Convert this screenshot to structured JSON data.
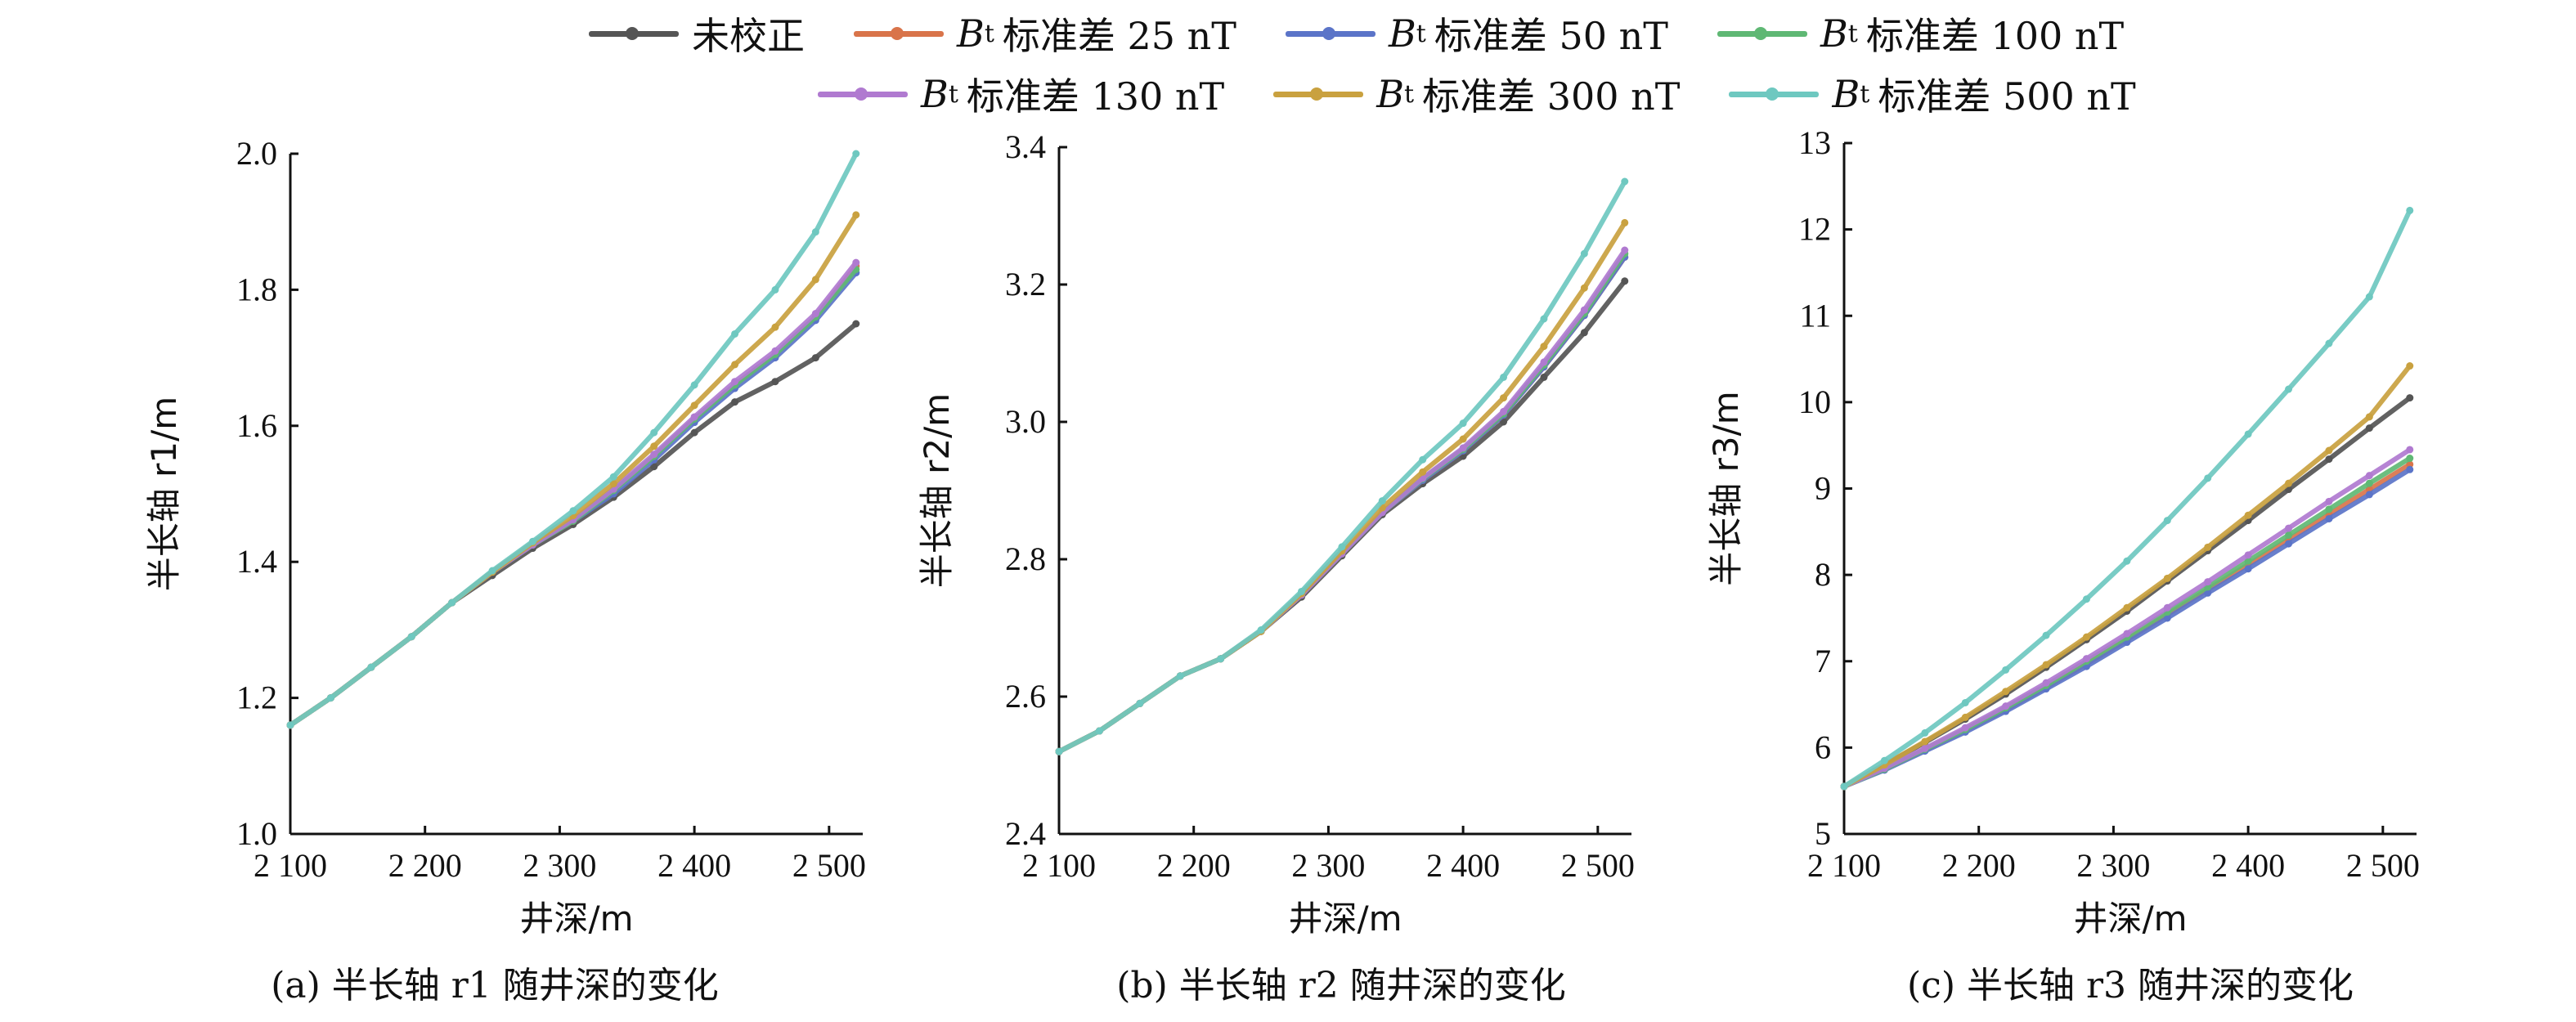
{
  "legend": [
    {
      "label": "未校正",
      "color": "#555555"
    },
    {
      "label": "标准差 25 nT",
      "color": "#d9744a"
    },
    {
      "label": "标准差 50 nT",
      "color": "#5b74c8"
    },
    {
      "label": "标准差 100 nT",
      "color": "#5fb874"
    },
    {
      "label": "标准差 130 nT",
      "color": "#b07ad0"
    },
    {
      "label": "标准差 300 nT",
      "color": "#c9a13f"
    },
    {
      "label": "标准差 500 nT",
      "color": "#6ec8c0"
    }
  ],
  "legend_var": "B",
  "legend_sub": "t",
  "chart_data": [
    {
      "type": "line",
      "xlabel": "井深/m",
      "ylabel": "半长轴 r1/m",
      "caption": "(a) 半长轴 r1 随井深的变化",
      "xlim": [
        2100,
        2525
      ],
      "ylim": [
        1.0,
        2.0
      ],
      "xticks": [
        2100,
        2200,
        2300,
        2400,
        2500
      ],
      "xtick_labels": [
        "2 100",
        "2 200",
        "2 300",
        "2 400",
        "2 500"
      ],
      "yticks": [
        1.0,
        1.2,
        1.4,
        1.6,
        1.8,
        2.0
      ],
      "ytick_labels": [
        "1.0",
        "1.2",
        "1.4",
        "1.6",
        "1.8",
        "2.0"
      ],
      "x": [
        2100,
        2130,
        2160,
        2190,
        2220,
        2250,
        2280,
        2310,
        2340,
        2370,
        2400,
        2430,
        2460,
        2490,
        2520
      ],
      "series": [
        {
          "name": "未校正",
          "values": [
            1.16,
            1.2,
            1.245,
            1.29,
            1.34,
            1.38,
            1.42,
            1.455,
            1.495,
            1.54,
            1.59,
            1.635,
            1.665,
            1.7,
            1.75
          ]
        },
        {
          "name": "标准差 25 nT",
          "values": [
            1.16,
            1.2,
            1.245,
            1.29,
            1.34,
            1.385,
            1.425,
            1.46,
            1.505,
            1.555,
            1.61,
            1.66,
            1.705,
            1.76,
            1.835
          ]
        },
        {
          "name": "标准差 50 nT",
          "values": [
            1.16,
            1.2,
            1.245,
            1.29,
            1.34,
            1.385,
            1.425,
            1.46,
            1.5,
            1.55,
            1.605,
            1.655,
            1.7,
            1.755,
            1.825
          ]
        },
        {
          "name": "标准差 100 nT",
          "values": [
            1.16,
            1.2,
            1.245,
            1.29,
            1.34,
            1.385,
            1.425,
            1.46,
            1.505,
            1.555,
            1.61,
            1.66,
            1.705,
            1.76,
            1.83
          ]
        },
        {
          "name": "标准差 130 nT",
          "values": [
            1.16,
            1.2,
            1.245,
            1.29,
            1.34,
            1.385,
            1.425,
            1.462,
            1.507,
            1.558,
            1.613,
            1.665,
            1.71,
            1.765,
            1.84
          ]
        },
        {
          "name": "标准差 300 nT",
          "values": [
            1.16,
            1.2,
            1.245,
            1.29,
            1.34,
            1.385,
            1.428,
            1.468,
            1.515,
            1.57,
            1.63,
            1.69,
            1.745,
            1.815,
            1.91
          ]
        },
        {
          "name": "标准差 500 nT",
          "values": [
            1.16,
            1.2,
            1.245,
            1.29,
            1.34,
            1.387,
            1.43,
            1.475,
            1.525,
            1.59,
            1.66,
            1.735,
            1.8,
            1.885,
            2.0
          ]
        }
      ]
    },
    {
      "type": "line",
      "xlabel": "井深/m",
      "ylabel": "半长轴 r2/m",
      "caption": "(b) 半长轴 r2 随井深的变化",
      "xlim": [
        2100,
        2525
      ],
      "ylim": [
        2.4,
        3.4
      ],
      "xticks": [
        2100,
        2200,
        2300,
        2400,
        2500
      ],
      "xtick_labels": [
        "2 100",
        "2 200",
        "2 300",
        "2 400",
        "2 500"
      ],
      "yticks": [
        2.4,
        2.6,
        2.8,
        3.0,
        3.2,
        3.4
      ],
      "ytick_labels": [
        "2.4",
        "2.6",
        "2.8",
        "3.0",
        "3.2",
        "3.4"
      ],
      "x": [
        2100,
        2130,
        2160,
        2190,
        2220,
        2250,
        2280,
        2310,
        2340,
        2370,
        2400,
        2430,
        2460,
        2490,
        2520
      ],
      "series": [
        {
          "name": "未校正",
          "values": [
            2.52,
            2.55,
            2.59,
            2.63,
            2.655,
            2.695,
            2.745,
            2.805,
            2.865,
            2.91,
            2.95,
            3.0,
            3.065,
            3.13,
            3.205
          ]
        },
        {
          "name": "标准差 25 nT",
          "values": [
            2.52,
            2.55,
            2.59,
            2.63,
            2.655,
            2.695,
            2.748,
            2.808,
            2.868,
            2.915,
            2.958,
            3.01,
            3.08,
            3.155,
            3.24
          ]
        },
        {
          "name": "标准差 50 nT",
          "values": [
            2.52,
            2.55,
            2.59,
            2.63,
            2.655,
            2.695,
            2.748,
            2.808,
            2.868,
            2.915,
            2.958,
            3.01,
            3.08,
            3.155,
            3.24
          ]
        },
        {
          "name": "标准差 100 nT",
          "values": [
            2.52,
            2.55,
            2.59,
            2.63,
            2.655,
            2.695,
            2.748,
            2.808,
            2.868,
            2.917,
            2.96,
            3.012,
            3.083,
            3.158,
            3.245
          ]
        },
        {
          "name": "标准差 130 nT",
          "values": [
            2.52,
            2.55,
            2.59,
            2.63,
            2.655,
            2.695,
            2.748,
            2.808,
            2.868,
            2.918,
            2.962,
            3.015,
            3.087,
            3.163,
            3.25
          ]
        },
        {
          "name": "标准差 300 nT",
          "values": [
            2.52,
            2.55,
            2.59,
            2.63,
            2.655,
            2.695,
            2.75,
            2.812,
            2.875,
            2.927,
            2.975,
            3.035,
            3.11,
            3.195,
            3.29
          ]
        },
        {
          "name": "标准差 500 nT",
          "values": [
            2.52,
            2.55,
            2.59,
            2.63,
            2.655,
            2.697,
            2.753,
            2.818,
            2.885,
            2.945,
            2.998,
            3.065,
            3.15,
            3.245,
            3.35
          ]
        }
      ]
    },
    {
      "type": "line",
      "xlabel": "井深/m",
      "ylabel": "半长轴 r3/m",
      "caption": "(c) 半长轴 r3 随井深的变化",
      "xlim": [
        2100,
        2525
      ],
      "ylim": [
        5,
        13
      ],
      "xticks": [
        2100,
        2200,
        2300,
        2400,
        2500
      ],
      "xtick_labels": [
        "2 100",
        "2 200",
        "2 300",
        "2 400",
        "2 500"
      ],
      "yticks": [
        5,
        6,
        7,
        8,
        9,
        10,
        11,
        12,
        13
      ],
      "ytick_labels": [
        "5",
        "6",
        "7",
        "8",
        "9",
        "10",
        "11",
        "12",
        "13"
      ],
      "x": [
        2100,
        2130,
        2160,
        2190,
        2220,
        2250,
        2280,
        2310,
        2340,
        2370,
        2400,
        2430,
        2460,
        2490,
        2520
      ],
      "series": [
        {
          "name": "未校正",
          "values": [
            5.55,
            5.8,
            6.06,
            6.33,
            6.62,
            6.93,
            7.25,
            7.58,
            7.93,
            8.28,
            8.63,
            8.99,
            9.34,
            9.7,
            10.05
          ]
        },
        {
          "name": "标准差 25 nT",
          "values": [
            5.55,
            5.75,
            5.97,
            6.2,
            6.44,
            6.7,
            6.97,
            7.25,
            7.54,
            7.83,
            8.12,
            8.41,
            8.7,
            8.99,
            9.28
          ]
        },
        {
          "name": "标准差 50 nT",
          "values": [
            5.55,
            5.74,
            5.96,
            6.18,
            6.42,
            6.68,
            6.94,
            7.22,
            7.5,
            7.79,
            8.07,
            8.36,
            8.65,
            8.93,
            9.22
          ]
        },
        {
          "name": "标准差 100 nT",
          "values": [
            5.55,
            5.75,
            5.98,
            6.21,
            6.46,
            6.72,
            7.0,
            7.28,
            7.57,
            7.86,
            8.16,
            8.46,
            8.76,
            9.06,
            9.35
          ]
        },
        {
          "name": "标准差 130 nT",
          "values": [
            5.55,
            5.76,
            5.99,
            6.23,
            6.48,
            6.75,
            7.03,
            7.32,
            7.62,
            7.92,
            8.23,
            8.54,
            8.85,
            9.15,
            9.45
          ]
        },
        {
          "name": "标准差 300 nT",
          "values": [
            5.55,
            5.8,
            6.07,
            6.35,
            6.65,
            6.96,
            7.28,
            7.62,
            7.96,
            8.32,
            8.69,
            9.06,
            9.44,
            9.83,
            10.42
          ]
        },
        {
          "name": "标准差 500 nT",
          "values": [
            5.55,
            5.85,
            6.17,
            6.52,
            6.9,
            7.3,
            7.72,
            8.16,
            8.63,
            9.12,
            9.63,
            10.15,
            10.68,
            11.22,
            12.22
          ]
        }
      ]
    }
  ]
}
